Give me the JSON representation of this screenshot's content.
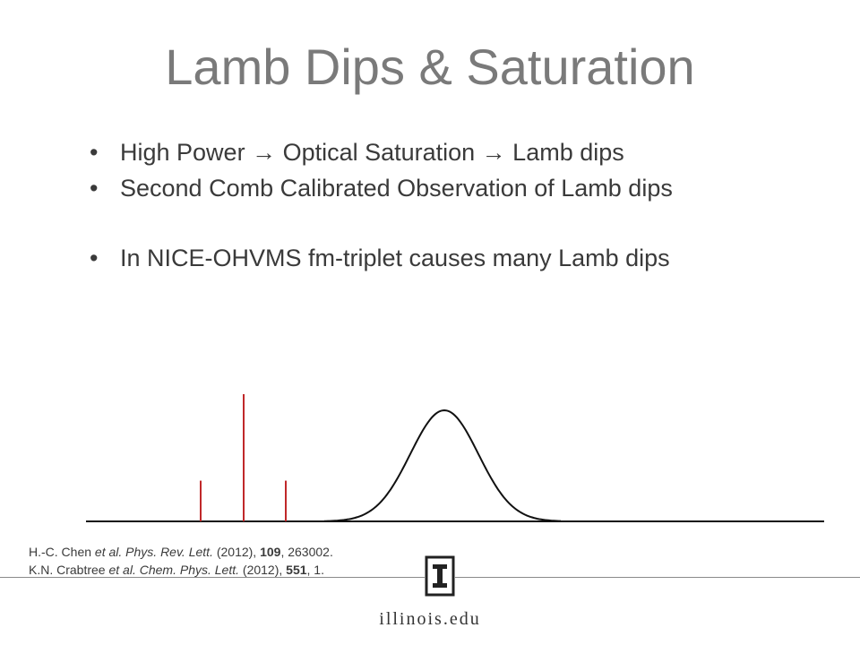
{
  "slide": {
    "title": "Lamb Dips & Saturation",
    "bullets": [
      {
        "bullet": "•",
        "text": "High Power → Optical Saturation → Lamb dips"
      },
      {
        "bullet": "•",
        "text": "Second Comb Calibrated Observation of Lamb dips"
      },
      {
        "bullet": "•",
        "text": "In NICE-OHVMS fm-triplet causes many Lamb dips"
      }
    ]
  },
  "figure": {
    "colors": {
      "triplet_lines": "#c0282a",
      "profile": "#111111",
      "baseline": "#111111"
    },
    "triplet_relative_heights": [
      0.32,
      1.0,
      0.32
    ]
  },
  "references": [
    {
      "authors": "H.-C. Chen ",
      "etal": "et al.",
      "journal": " Phys. Rev. Lett.",
      "year": " (2012), ",
      "volume": "109",
      "pages": ", 263002."
    },
    {
      "authors": "K.N. Crabtree ",
      "etal": "et al.",
      "journal": " Chem. Phys. Lett.",
      "year": " (2012), ",
      "volume": "551",
      "pages": ", 1."
    }
  ],
  "footer": {
    "domain": "illinois.edu",
    "logo_icon": "illinois-block-i-icon"
  }
}
